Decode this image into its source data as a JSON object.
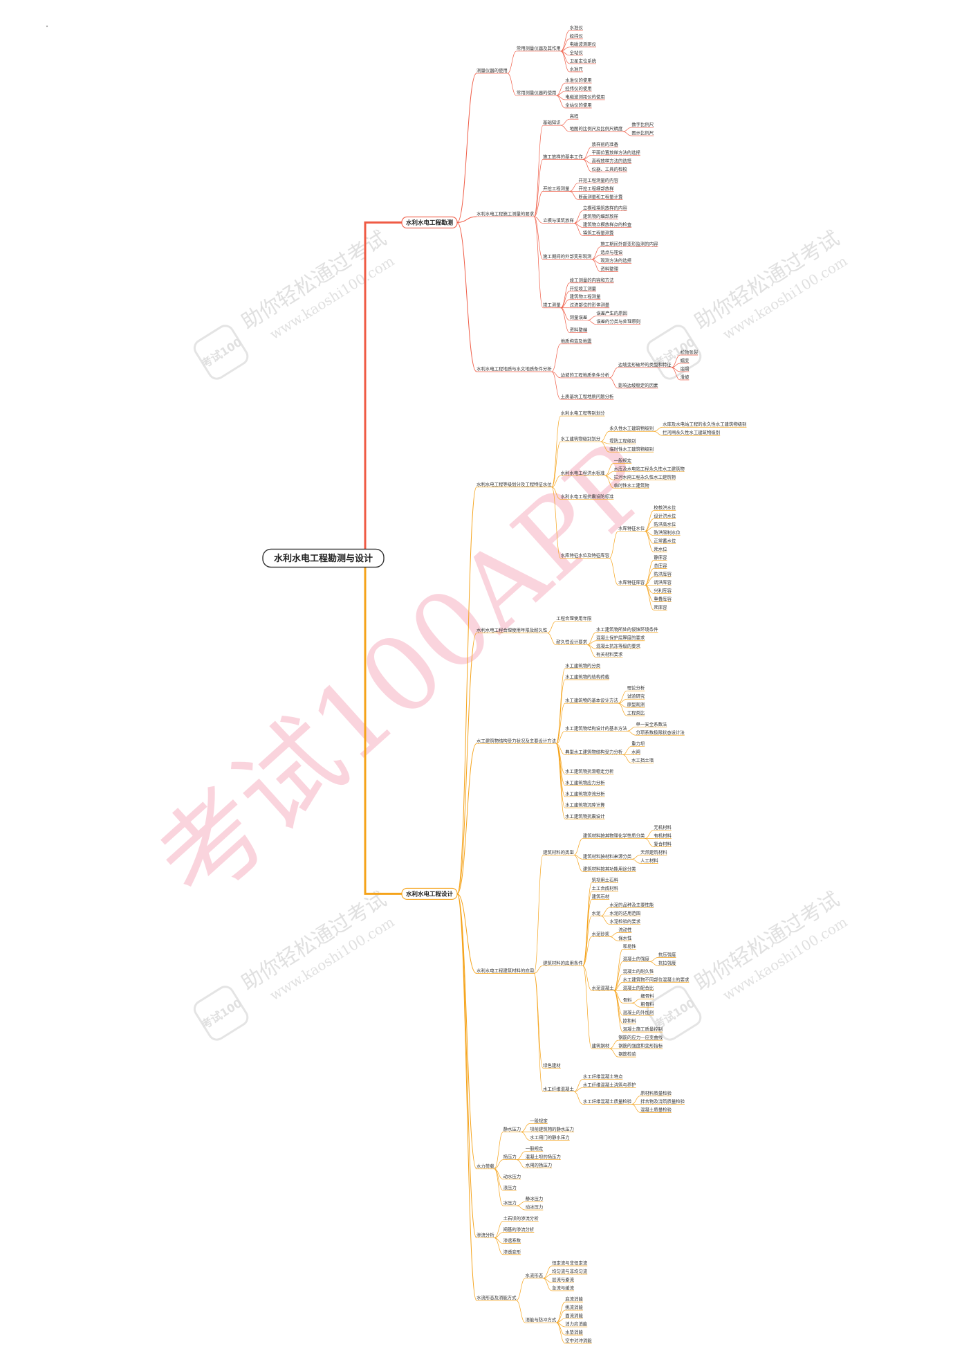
{
  "root": {
    "label": "水利水电工程勘测与设计",
    "children": [
      {
        "label": "水利水电工程勘测",
        "children": [
          {
            "label": "测量仪器的使用",
            "children": [
              {
                "label": "常用测量仪器及其作用",
                "children": [
                  {
                    "label": "水准仪"
                  },
                  {
                    "label": "经纬仪"
                  },
                  {
                    "label": "电磁波测距仪"
                  },
                  {
                    "label": "全站仪"
                  },
                  {
                    "label": "卫星定位系统"
                  },
                  {
                    "label": "水准尺"
                  }
                ]
              },
              {
                "label": "常用测量仪器的使用",
                "children": [
                  {
                    "label": "水准仪的使用"
                  },
                  {
                    "label": "经纬仪的使用"
                  },
                  {
                    "label": "电磁波测距仪的使用"
                  },
                  {
                    "label": "全站仪的使用"
                  }
                ]
              }
            ]
          },
          {
            "label": "水利水电工程施工测量的要求",
            "children": [
              {
                "label": "基础知识",
                "children": [
                  {
                    "label": "高程"
                  },
                  {
                    "label": "地图的比例尺及比例尺精度",
                    "children": [
                      {
                        "label": "数字比例尺"
                      },
                      {
                        "label": "图示比例尺"
                      }
                    ]
                  }
                ]
              },
              {
                "label": "施工放样的基本工作",
                "children": [
                  {
                    "label": "放样前的准备"
                  },
                  {
                    "label": "平面位置放样方法的选择"
                  },
                  {
                    "label": "高程放样方法的选择"
                  },
                  {
                    "label": "仪器、工具的检校"
                  }
                ]
              },
              {
                "label": "开挖工程测量",
                "children": [
                  {
                    "label": "开挖工程测量的内容"
                  },
                  {
                    "label": "开挖工程细部放样"
                  },
                  {
                    "label": "断面测量和工程量计算"
                  }
                ]
              },
              {
                "label": "立模与填筑放样",
                "children": [
                  {
                    "label": "立模和填筑放样的内容"
                  },
                  {
                    "label": "建筑物的细部放样"
                  },
                  {
                    "label": "建筑物立模放样点的检查"
                  },
                  {
                    "label": "填筑工程量测算"
                  }
                ]
              },
              {
                "label": "施工期间的外部变形观测",
                "children": [
                  {
                    "label": "施工期间外部变形监测的内容"
                  },
                  {
                    "label": "选点与埋设"
                  },
                  {
                    "label": "观测方法的选择"
                  },
                  {
                    "label": "资料整理"
                  }
                ]
              },
              {
                "label": "竣工测量",
                "children": [
                  {
                    "label": "竣工测量的内容和方法"
                  },
                  {
                    "label": "开挖竣工测量"
                  },
                  {
                    "label": "建筑物工程测量"
                  },
                  {
                    "label": "过流部位的形体测量"
                  },
                  {
                    "label": "测量误差",
                    "children": [
                      {
                        "label": "误差产生的原因"
                      },
                      {
                        "label": "误差的分类与处理原则"
                      }
                    ]
                  },
                  {
                    "label": "资料整编"
                  }
                ]
              }
            ]
          },
          {
            "label": "水利水电工程地质与水文地质条件分析",
            "children": [
              {
                "label": "地质构造及地震"
              },
              {
                "label": "边坡的工程地质条件分析",
                "children": [
                  {
                    "label": "边坡变形破坏的类型和特征",
                    "children": [
                      {
                        "label": "松弛张裂"
                      },
                      {
                        "label": "蠕变"
                      },
                      {
                        "label": "崩塌"
                      },
                      {
                        "label": "滑坡"
                      }
                    ]
                  },
                  {
                    "label": "影响边坡稳定的因素"
                  }
                ]
              },
              {
                "label": "土质基坑工程地质问题分析"
              }
            ]
          }
        ]
      },
      {
        "label": "水利水电工程设计",
        "children": [
          {
            "label": "水利水电工程等级划分及工程特征水位",
            "children": [
              {
                "label": "水利水电工程等别划分"
              },
              {
                "label": "水工建筑物级别划分",
                "children": [
                  {
                    "label": "永久性水工建筑物级别",
                    "children": [
                      {
                        "label": "水库及水电站工程的永久性水工建筑物级别"
                      },
                      {
                        "label": "拦河闸永久性水工建筑物级别"
                      }
                    ]
                  },
                  {
                    "label": "堤防工程级别"
                  },
                  {
                    "label": "临时性水工建筑物级别"
                  }
                ]
              },
              {
                "label": "水利水电工程洪水标准",
                "children": [
                  {
                    "label": "一般规定"
                  },
                  {
                    "label": "水库及水电站工程永久性水工建筑物"
                  },
                  {
                    "label": "拦河水闸工程永久性水工建筑物"
                  },
                  {
                    "label": "临时性水工建筑物"
                  }
                ]
              },
              {
                "label": "水利水电工程抗震设防标准"
              },
              {
                "label": "水库特征水位及特征库容",
                "children": [
                  {
                    "label": "水库特征水位",
                    "children": [
                      {
                        "label": "校核洪水位"
                      },
                      {
                        "label": "设计洪水位"
                      },
                      {
                        "label": "防洪高水位"
                      },
                      {
                        "label": "防洪限制水位"
                      },
                      {
                        "label": "正常蓄水位"
                      },
                      {
                        "label": "死水位"
                      }
                    ]
                  },
                  {
                    "label": "水库特征库容",
                    "children": [
                      {
                        "label": "静库容"
                      },
                      {
                        "label": "总库容"
                      },
                      {
                        "label": "防洪库容"
                      },
                      {
                        "label": "调洪库容"
                      },
                      {
                        "label": "兴利库容"
                      },
                      {
                        "label": "重叠库容"
                      },
                      {
                        "label": "死库容"
                      }
                    ]
                  }
                ]
              }
            ]
          },
          {
            "label": "水利水电工程合理使用年限及耐久性",
            "children": [
              {
                "label": "工程合理使用年限"
              },
              {
                "label": "耐久性设计要求",
                "children": [
                  {
                    "label": "水工建筑物所处的侵蚀环境条件"
                  },
                  {
                    "label": "混凝土保护层厚度的要求"
                  },
                  {
                    "label": "混凝土抗冻等级的要求"
                  },
                  {
                    "label": "有关材料要求"
                  }
                ]
              }
            ]
          },
          {
            "label": "水工建筑物结构受力状况及主要设计方法",
            "children": [
              {
                "label": "水工建筑物的分类"
              },
              {
                "label": "水工建筑物的结构荷载"
              },
              {
                "label": "水工建筑物的基本设计方法",
                "children": [
                  {
                    "label": "理论分析"
                  },
                  {
                    "label": "试验研究"
                  },
                  {
                    "label": "原型观测"
                  },
                  {
                    "label": "工程类比"
                  }
                ]
              },
              {
                "label": "水工建筑物结构设计的基本方法",
                "children": [
                  {
                    "label": "单一安全系数法"
                  },
                  {
                    "label": "分项系数极限状态设计法"
                  }
                ]
              },
              {
                "label": "典型水工建筑物结构受力分析",
                "children": [
                  {
                    "label": "重力坝"
                  },
                  {
                    "label": "水闸"
                  },
                  {
                    "label": "水工挡土墙"
                  }
                ]
              },
              {
                "label": "水工建筑物抗滑稳定分析"
              },
              {
                "label": "水工建筑物应力分析"
              },
              {
                "label": "水工建筑物渗流分析"
              },
              {
                "label": "水工建筑物沉降计算"
              },
              {
                "label": "水工建筑物抗震设计"
              }
            ]
          },
          {
            "label": "水利水电工程建筑材料的应用",
            "children": [
              {
                "label": "建筑材料的类型",
                "children": [
                  {
                    "label": "建筑材料按其物理化学性质分类",
                    "children": [
                      {
                        "label": "无机材料"
                      },
                      {
                        "label": "有机材料"
                      },
                      {
                        "label": "复合材料"
                      }
                    ]
                  },
                  {
                    "label": "建筑材料按材料来源分类",
                    "children": [
                      {
                        "label": "天然建筑材料"
                      },
                      {
                        "label": "人工材料"
                      }
                    ]
                  },
                  {
                    "label": "建筑材料按其功能用途分类"
                  }
                ]
              },
              {
                "label": "建筑材料的应用条件",
                "children": [
                  {
                    "label": "筑坝用土石料"
                  },
                  {
                    "label": "土工合成材料"
                  },
                  {
                    "label": "建筑石材"
                  },
                  {
                    "label": "水泥",
                    "children": [
                      {
                        "label": "水泥的品种及主要性能"
                      },
                      {
                        "label": "水泥的适用范围"
                      },
                      {
                        "label": "水泥检验的要求"
                      }
                    ]
                  },
                  {
                    "label": "水泥砂浆",
                    "children": [
                      {
                        "label": "流动性"
                      },
                      {
                        "label": "保水性"
                      }
                    ]
                  },
                  {
                    "label": "水泥混凝土",
                    "children": [
                      {
                        "label": "和易性"
                      },
                      {
                        "label": "混凝土的强度",
                        "children": [
                          {
                            "label": "抗压强度"
                          },
                          {
                            "label": "抗拉强度"
                          }
                        ]
                      },
                      {
                        "label": "混凝土的耐久性"
                      },
                      {
                        "label": "水工建筑物不同部位混凝土的要求"
                      },
                      {
                        "label": "混凝土的配合比"
                      },
                      {
                        "label": "骨料",
                        "children": [
                          {
                            "label": "细骨料"
                          },
                          {
                            "label": "粗骨料"
                          }
                        ]
                      },
                      {
                        "label": "混凝土的外加剂"
                      },
                      {
                        "label": "掺和料"
                      },
                      {
                        "label": "混凝土施工质量控制"
                      }
                    ]
                  },
                  {
                    "label": "建筑钢材",
                    "children": [
                      {
                        "label": "钢筋的应力—应变曲线"
                      },
                      {
                        "label": "钢筋的强度和变形指标"
                      },
                      {
                        "label": "钢筋检验"
                      }
                    ]
                  }
                ]
              },
              {
                "label": "绿色建材"
              },
              {
                "label": "水工纤维混凝土",
                "children": [
                  {
                    "label": "水工纤维混凝土特点"
                  },
                  {
                    "label": "水工纤维混凝土浇筑与养护"
                  },
                  {
                    "label": "水工纤维混凝土质量检验",
                    "children": [
                      {
                        "label": "原材料质量检验"
                      },
                      {
                        "label": "拌合物及浇筑质量检验"
                      },
                      {
                        "label": "混凝土质量检验"
                      }
                    ]
                  }
                ]
              }
            ]
          },
          {
            "label": "水力荷载",
            "children": [
              {
                "label": "静水压力",
                "children": [
                  {
                    "label": "一般规定"
                  },
                  {
                    "label": "坝前建筑物的静水压力"
                  },
                  {
                    "label": "水工闸门的静水压力"
                  }
                ]
              },
              {
                "label": "扬压力",
                "children": [
                  {
                    "label": "一般规定"
                  },
                  {
                    "label": "混凝土坝的扬压力"
                  },
                  {
                    "label": "水闸的扬压力"
                  }
                ]
              },
              {
                "label": "动水压力"
              },
              {
                "label": "浪压力"
              },
              {
                "label": "冰压力",
                "children": [
                  {
                    "label": "静冰压力"
                  },
                  {
                    "label": "动冰压力"
                  }
                ]
              }
            ]
          },
          {
            "label": "渗流分析",
            "children": [
              {
                "label": "土石坝的渗流分析"
              },
              {
                "label": "闸基的渗流分析"
              },
              {
                "label": "渗透系数"
              },
              {
                "label": "渗透变形"
              }
            ]
          },
          {
            "label": "水流形态及消能方式",
            "children": [
              {
                "label": "水流形态",
                "children": [
                  {
                    "label": "恒定流与非恒定流"
                  },
                  {
                    "label": "均匀流与非均匀流"
                  },
                  {
                    "label": "层流与紊流"
                  },
                  {
                    "label": "急流与缓流"
                  }
                ]
              },
              {
                "label": "消能与防冲方式",
                "children": [
                  {
                    "label": "底流消能"
                  },
                  {
                    "label": "挑流消能"
                  },
                  {
                    "label": "面流消能"
                  },
                  {
                    "label": "消力戽消能"
                  },
                  {
                    "label": "水垫消能"
                  },
                  {
                    "label": "空中对冲消能"
                  }
                ]
              }
            ]
          }
        ]
      }
    ]
  },
  "watermark": {
    "main": "考试100APP",
    "slogan": "助你轻松通过考试",
    "url": "www.kaoshi100.com",
    "stamp": "考试100"
  }
}
